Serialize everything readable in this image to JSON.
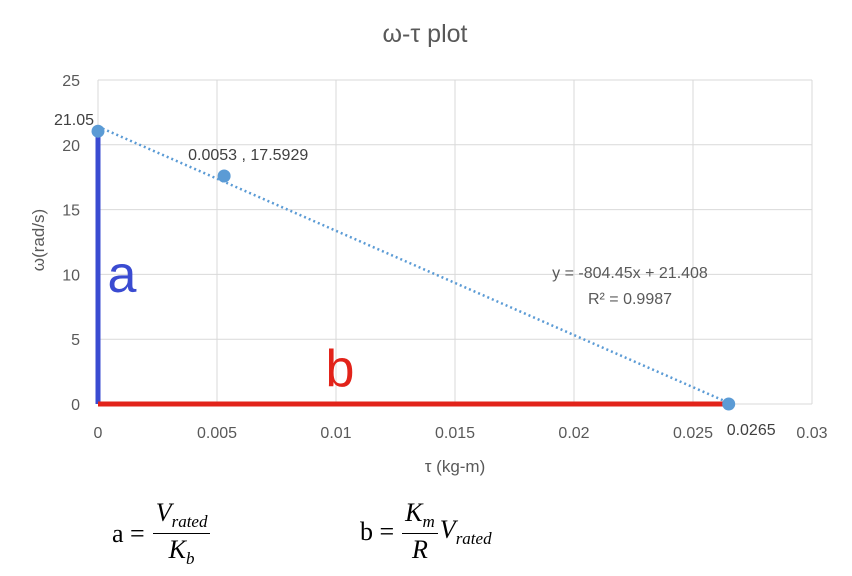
{
  "chart_data": {
    "type": "scatter",
    "title": "ω-τ plot",
    "xlabel": "τ (kg-m)",
    "ylabel": "ω(rad/s)",
    "xlim": [
      0,
      0.03
    ],
    "ylim": [
      0,
      25
    ],
    "xticks": [
      "0",
      "0.005",
      "0.01",
      "0.015",
      "0.02",
      "0.025",
      "0.03"
    ],
    "xtick_values": [
      0,
      0.005,
      0.01,
      0.015,
      0.02,
      0.025,
      0.03
    ],
    "yticks": [
      "0",
      "5",
      "10",
      "15",
      "20",
      "25"
    ],
    "ytick_values": [
      0,
      5,
      10,
      15,
      20,
      25
    ],
    "grid": true,
    "points": [
      {
        "x": 0,
        "y": 21.05
      },
      {
        "x": 0.0053,
        "y": 17.5929
      },
      {
        "x": 0.0265,
        "y": 0
      }
    ],
    "point_labels": [
      "21.05",
      "0.0053 , 17.5929",
      "0.0265"
    ],
    "point_color": "#5b9bd5",
    "trendline": {
      "slope": -804.45,
      "intercept": 21.408,
      "equation": "y = -804.45x + 21.408",
      "r_squared": "R² = 0.9987",
      "color": "#5b9bd5",
      "style": "dotted"
    },
    "annotations": [
      {
        "label": "a",
        "color": "#3a4bd1",
        "from": [
          0,
          0
        ],
        "to": [
          0,
          21.05
        ]
      },
      {
        "label": "b",
        "color": "#e2231a",
        "from": [
          0,
          0
        ],
        "to": [
          0.0265,
          0
        ]
      }
    ]
  },
  "formulas": {
    "a": {
      "lhs": "a =",
      "num_main": "V",
      "num_sub": "rated",
      "den_main": "K",
      "den_sub": "b"
    },
    "b": {
      "lhs": "b =",
      "num_main": "K",
      "num_sub": "m",
      "den_main": "R",
      "trail_main": "V",
      "trail_sub": "rated"
    }
  }
}
